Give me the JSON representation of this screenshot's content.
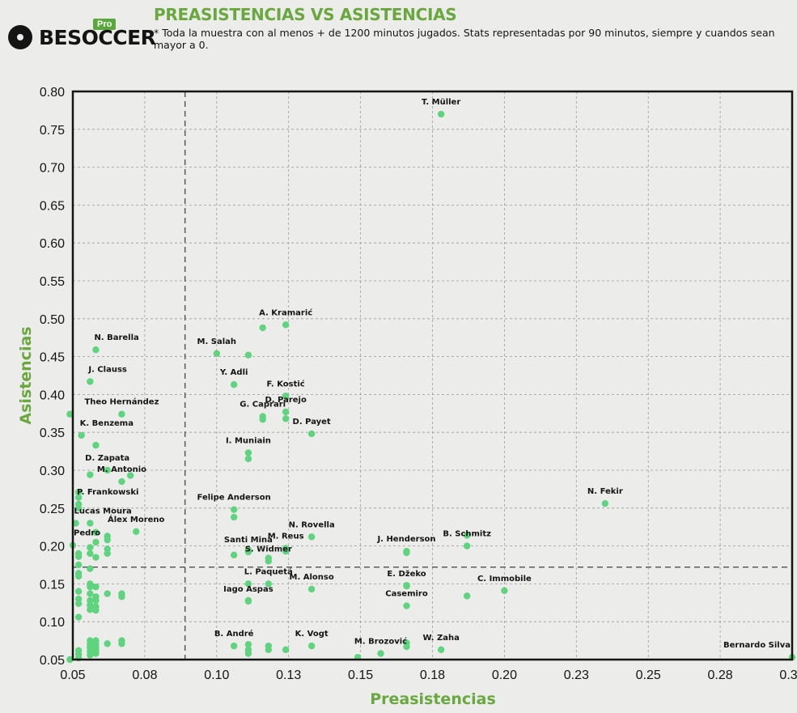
{
  "header": {
    "title": "PREASISTENCIAS VS ASISTENCIAS",
    "subtitle": "* Toda la muestra con al menos + de 1200 minutos jugados. Stats representadas por 90 minutos, siempre y cuandos sean mayor a 0.",
    "logo_text": "BESOCCER",
    "logo_badge": "Pro"
  },
  "colors": {
    "accent": "#69a83e",
    "point": "#5fd47e",
    "frame": "#141414",
    "grid": "#9a9a9a"
  },
  "chart_data": {
    "type": "scatter",
    "xlabel": "Preasistencias",
    "ylabel": "Asistencias",
    "xlim": [
      0.05,
      0.3
    ],
    "ylim": [
      0.05,
      0.8
    ],
    "x_ticks": [
      0.05,
      0.075,
      0.1,
      0.125,
      0.15,
      0.175,
      0.2,
      0.225,
      0.25,
      0.275,
      0.3
    ],
    "x_tick_labels": [
      "0.05",
      "0.08",
      "0.10",
      "0.13",
      "0.15",
      "0.18",
      "0.20",
      "0.23",
      "0.25",
      "0.28",
      "0.30"
    ],
    "y_ticks": [
      0.05,
      0.1,
      0.15,
      0.2,
      0.25,
      0.3,
      0.35,
      0.4,
      0.45,
      0.5,
      0.55,
      0.6,
      0.65,
      0.7,
      0.75,
      0.8
    ],
    "y_tick_labels": [
      "0.05",
      "0.10",
      "0.15",
      "0.20",
      "0.25",
      "0.30",
      "0.35",
      "0.40",
      "0.45",
      "0.50",
      "0.55",
      "0.60",
      "0.65",
      "0.70",
      "0.75",
      "0.80"
    ],
    "reference_lines": {
      "x": 0.089,
      "y": 0.172
    },
    "grid": true,
    "labeled_points": [
      {
        "name": "T. Müller",
        "x": 0.178,
        "y": 0.77
      },
      {
        "name": "A. Kramarić",
        "x": 0.124,
        "y": 0.492
      },
      {
        "name": "N. Barella",
        "x": 0.058,
        "y": 0.459
      },
      {
        "name": "M. Salah",
        "x": 0.1,
        "y": 0.454
      },
      {
        "name": "J. Clauss",
        "x": 0.056,
        "y": 0.417
      },
      {
        "name": "Y. Adli",
        "x": 0.106,
        "y": 0.413
      },
      {
        "name": "F. Kostić",
        "x": 0.124,
        "y": 0.398
      },
      {
        "name": "Theo Hernández",
        "x": 0.067,
        "y": 0.374
      },
      {
        "name": "G. Caprari",
        "x": 0.116,
        "y": 0.371
      },
      {
        "name": "D. Parejo",
        "x": 0.124,
        "y": 0.377
      },
      {
        "name": "K. Benzema",
        "x": 0.053,
        "y": 0.346
      },
      {
        "name": "D. Payet",
        "x": 0.133,
        "y": 0.348
      },
      {
        "name": "I. Muniain",
        "x": 0.111,
        "y": 0.323
      },
      {
        "name": "D. Zapata",
        "x": 0.062,
        "y": 0.3
      },
      {
        "name": "M. Antonio",
        "x": 0.067,
        "y": 0.285
      },
      {
        "name": "Felipe Anderson",
        "x": 0.106,
        "y": 0.248
      },
      {
        "name": "P. Frankowski",
        "x": 0.052,
        "y": 0.255
      },
      {
        "name": "N. Fekir",
        "x": 0.235,
        "y": 0.256
      },
      {
        "name": "Lucas Moura",
        "x": 0.051,
        "y": 0.23
      },
      {
        "name": "Álex Moreno",
        "x": 0.072,
        "y": 0.219
      },
      {
        "name": "N. Rovella",
        "x": 0.133,
        "y": 0.212
      },
      {
        "name": "B. Schmitz",
        "x": 0.187,
        "y": 0.2
      },
      {
        "name": "Santi Mina",
        "x": 0.111,
        "y": 0.192
      },
      {
        "name": "M. Reus",
        "x": 0.124,
        "y": 0.197
      },
      {
        "name": "J. Henderson",
        "x": 0.166,
        "y": 0.193
      },
      {
        "name": "Pedro",
        "x": 0.05,
        "y": 0.201
      },
      {
        "name": "S. Widmer",
        "x": 0.118,
        "y": 0.18
      },
      {
        "name": "L. Paquetá",
        "x": 0.118,
        "y": 0.15
      },
      {
        "name": "M. Alonso",
        "x": 0.133,
        "y": 0.143
      },
      {
        "name": "E. Džeko",
        "x": 0.166,
        "y": 0.147
      },
      {
        "name": "C. Immobile",
        "x": 0.2,
        "y": 0.141
      },
      {
        "name": "Iago Aspas",
        "x": 0.111,
        "y": 0.127
      },
      {
        "name": "Casemiro",
        "x": 0.166,
        "y": 0.121
      },
      {
        "name": "K. Vogt",
        "x": 0.133,
        "y": 0.068
      },
      {
        "name": "B. André",
        "x": 0.106,
        "y": 0.068
      },
      {
        "name": "M. Brozović",
        "x": 0.157,
        "y": 0.058
      },
      {
        "name": "W. Zaha",
        "x": 0.178,
        "y": 0.063
      },
      {
        "name": "Bernardo Silva",
        "x": 0.3,
        "y": 0.053
      }
    ],
    "unlabeled_points": [
      {
        "x": 0.049,
        "y": 0.374
      },
      {
        "x": 0.058,
        "y": 0.333
      },
      {
        "x": 0.07,
        "y": 0.293
      },
      {
        "x": 0.056,
        "y": 0.294
      },
      {
        "x": 0.052,
        "y": 0.271
      },
      {
        "x": 0.052,
        "y": 0.264
      },
      {
        "x": 0.052,
        "y": 0.25
      },
      {
        "x": 0.056,
        "y": 0.23
      },
      {
        "x": 0.058,
        "y": 0.218
      },
      {
        "x": 0.062,
        "y": 0.213
      },
      {
        "x": 0.062,
        "y": 0.208
      },
      {
        "x": 0.058,
        "y": 0.205
      },
      {
        "x": 0.056,
        "y": 0.198
      },
      {
        "x": 0.062,
        "y": 0.196
      },
      {
        "x": 0.052,
        "y": 0.19
      },
      {
        "x": 0.056,
        "y": 0.19
      },
      {
        "x": 0.062,
        "y": 0.19
      },
      {
        "x": 0.052,
        "y": 0.186
      },
      {
        "x": 0.058,
        "y": 0.185
      },
      {
        "x": 0.052,
        "y": 0.175
      },
      {
        "x": 0.056,
        "y": 0.17
      },
      {
        "x": 0.052,
        "y": 0.164
      },
      {
        "x": 0.052,
        "y": 0.16
      },
      {
        "x": 0.056,
        "y": 0.15
      },
      {
        "x": 0.056,
        "y": 0.146
      },
      {
        "x": 0.058,
        "y": 0.146
      },
      {
        "x": 0.052,
        "y": 0.14
      },
      {
        "x": 0.056,
        "y": 0.137
      },
      {
        "x": 0.062,
        "y": 0.137
      },
      {
        "x": 0.067,
        "y": 0.137
      },
      {
        "x": 0.058,
        "y": 0.133
      },
      {
        "x": 0.052,
        "y": 0.13
      },
      {
        "x": 0.056,
        "y": 0.128
      },
      {
        "x": 0.058,
        "y": 0.128
      },
      {
        "x": 0.067,
        "y": 0.133
      },
      {
        "x": 0.052,
        "y": 0.124
      },
      {
        "x": 0.056,
        "y": 0.122
      },
      {
        "x": 0.058,
        "y": 0.12
      },
      {
        "x": 0.056,
        "y": 0.116
      },
      {
        "x": 0.058,
        "y": 0.115
      },
      {
        "x": 0.052,
        "y": 0.106
      },
      {
        "x": 0.106,
        "y": 0.238
      },
      {
        "x": 0.111,
        "y": 0.452
      },
      {
        "x": 0.116,
        "y": 0.488
      },
      {
        "x": 0.116,
        "y": 0.367
      },
      {
        "x": 0.124,
        "y": 0.368
      },
      {
        "x": 0.111,
        "y": 0.315
      },
      {
        "x": 0.106,
        "y": 0.188
      },
      {
        "x": 0.111,
        "y": 0.195
      },
      {
        "x": 0.124,
        "y": 0.193
      },
      {
        "x": 0.118,
        "y": 0.184
      },
      {
        "x": 0.111,
        "y": 0.15
      },
      {
        "x": 0.111,
        "y": 0.128
      },
      {
        "x": 0.187,
        "y": 0.214
      },
      {
        "x": 0.187,
        "y": 0.134
      },
      {
        "x": 0.166,
        "y": 0.191
      },
      {
        "x": 0.166,
        "y": 0.148
      },
      {
        "x": 0.111,
        "y": 0.07
      },
      {
        "x": 0.111,
        "y": 0.063
      },
      {
        "x": 0.111,
        "y": 0.058
      },
      {
        "x": 0.118,
        "y": 0.068
      },
      {
        "x": 0.118,
        "y": 0.063
      },
      {
        "x": 0.166,
        "y": 0.072
      },
      {
        "x": 0.166,
        "y": 0.067
      },
      {
        "x": 0.124,
        "y": 0.063
      },
      {
        "x": 0.149,
        "y": 0.053
      },
      {
        "x": 0.052,
        "y": 0.062
      },
      {
        "x": 0.052,
        "y": 0.057
      },
      {
        "x": 0.052,
        "y": 0.052
      },
      {
        "x": 0.056,
        "y": 0.075
      },
      {
        "x": 0.056,
        "y": 0.07
      },
      {
        "x": 0.056,
        "y": 0.066
      },
      {
        "x": 0.056,
        "y": 0.061
      },
      {
        "x": 0.056,
        "y": 0.056
      },
      {
        "x": 0.058,
        "y": 0.075
      },
      {
        "x": 0.058,
        "y": 0.07
      },
      {
        "x": 0.058,
        "y": 0.066
      },
      {
        "x": 0.058,
        "y": 0.062
      },
      {
        "x": 0.058,
        "y": 0.058
      },
      {
        "x": 0.062,
        "y": 0.071
      },
      {
        "x": 0.067,
        "y": 0.075
      },
      {
        "x": 0.067,
        "y": 0.071
      },
      {
        "x": 0.049,
        "y": 0.05
      }
    ]
  }
}
